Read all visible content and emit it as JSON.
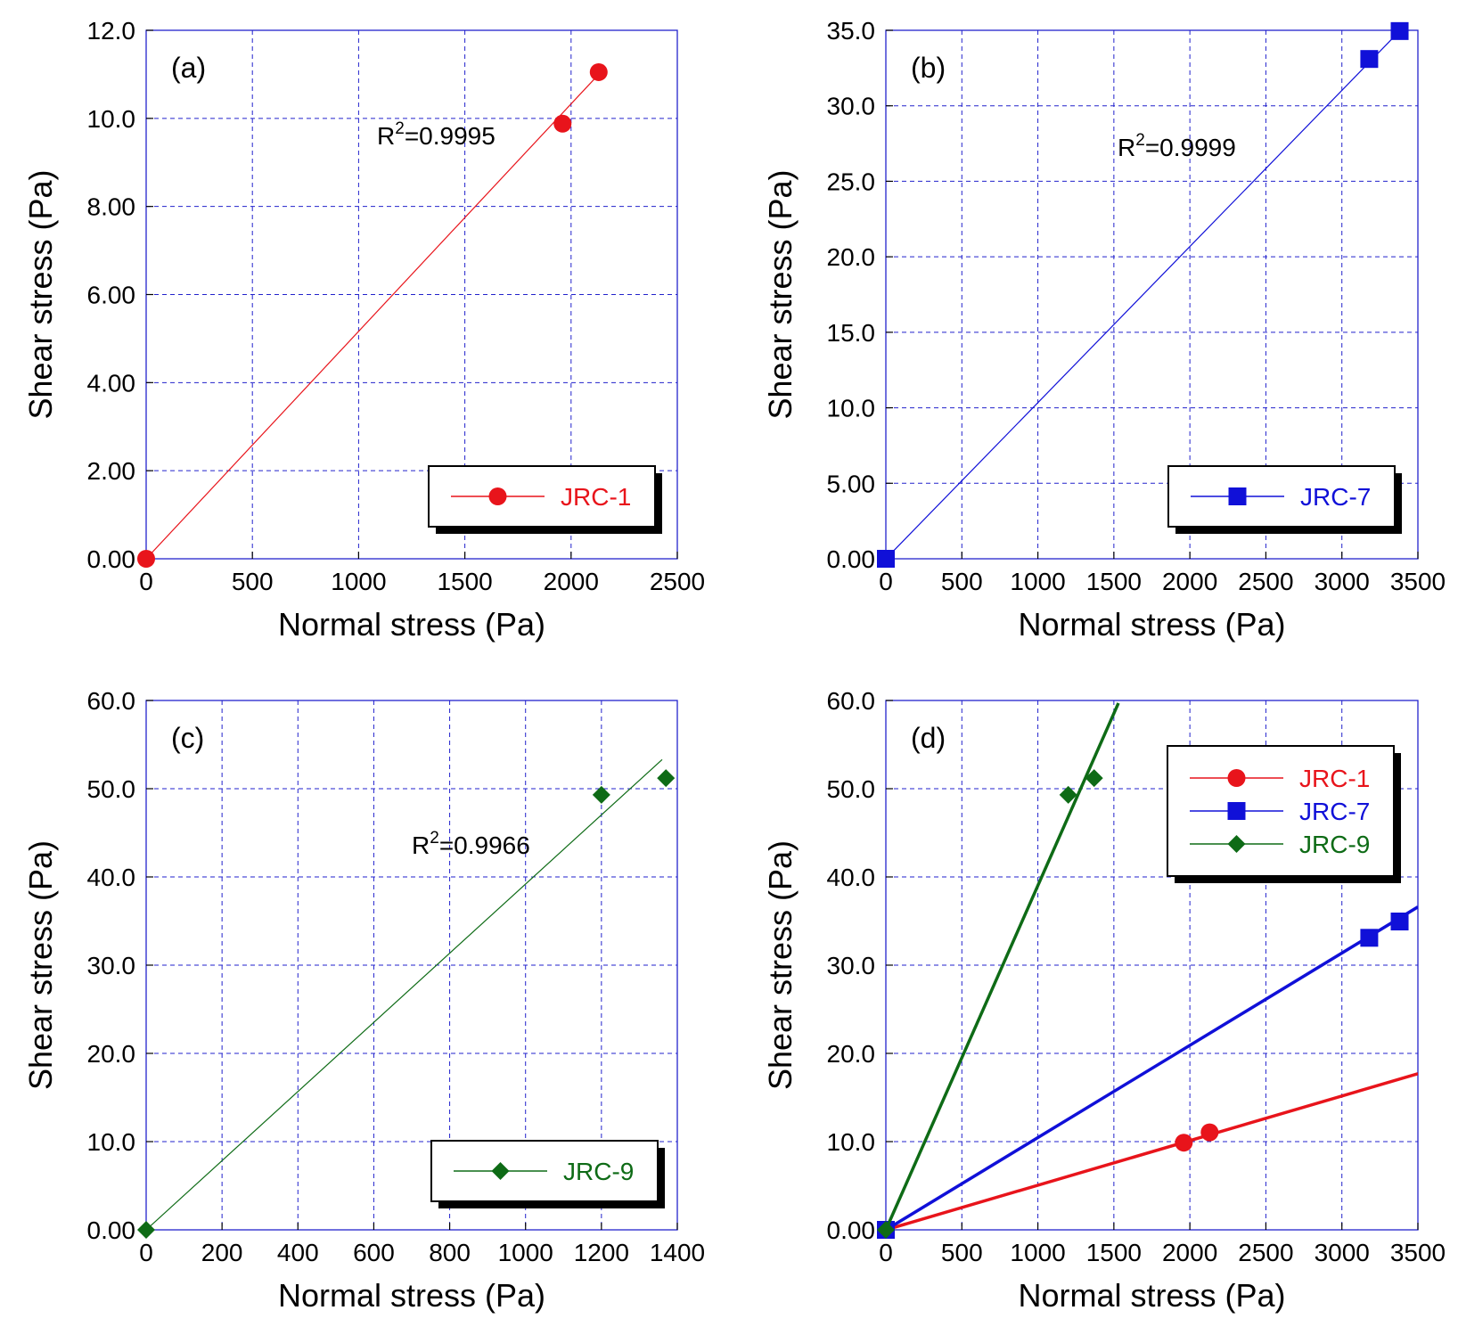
{
  "chart_data": [
    {
      "panel_label": "(a)",
      "type": "scatter",
      "xlabel": "Normal stress (Pa)",
      "ylabel": "Shear stress (Pa)",
      "xlim": [
        0,
        2500
      ],
      "ylim": [
        0,
        12
      ],
      "xticks": [
        "0",
        "500",
        "1000",
        "1500",
        "2000",
        "2500"
      ],
      "yticks": [
        "0.00",
        "2.00",
        "4.00",
        "6.00",
        "8.00",
        "10.0",
        "12.0"
      ],
      "grid": true,
      "legend_position": "bottom-right",
      "annotation": {
        "base": "R",
        "sup": "2",
        "rest": "=0.9995"
      },
      "series": [
        {
          "name": "JRC-1",
          "color": "#e8141b",
          "marker": "circle",
          "x": [
            0,
            1960,
            2130
          ],
          "y": [
            0,
            9.88,
            11.05
          ],
          "fit": {
            "x": [
              0,
              2130
            ],
            "y": [
              0,
              11.0
            ]
          }
        }
      ]
    },
    {
      "panel_label": "(b)",
      "type": "scatter",
      "xlabel": "Normal stress (Pa)",
      "ylabel": "Shear stress (Pa)",
      "xlim": [
        0,
        3500
      ],
      "ylim": [
        0,
        35
      ],
      "xticks": [
        "0",
        "500",
        "1000",
        "1500",
        "2000",
        "2500",
        "3000",
        "3500"
      ],
      "yticks": [
        "0.00",
        "5.00",
        "10.0",
        "15.0",
        "20.0",
        "25.0",
        "30.0",
        "35.0"
      ],
      "grid": true,
      "legend_position": "bottom-right",
      "annotation": {
        "base": "R",
        "sup": "2",
        "rest": "=0.9999"
      },
      "series": [
        {
          "name": "JRC-7",
          "color": "#1010d8",
          "marker": "square",
          "x": [
            0,
            3180,
            3380
          ],
          "y": [
            0,
            33.1,
            34.95
          ],
          "fit": {
            "x": [
              0,
              3380
            ],
            "y": [
              0,
              34.95
            ]
          }
        }
      ]
    },
    {
      "panel_label": "(c)",
      "type": "scatter",
      "xlabel": "Normal stress (Pa)",
      "ylabel": "Shear stress (Pa)",
      "xlim": [
        0,
        1400
      ],
      "ylim": [
        0,
        60
      ],
      "xticks": [
        "0",
        "200",
        "400",
        "600",
        "800",
        "1000",
        "1200",
        "1400"
      ],
      "yticks": [
        "0.00",
        "10.0",
        "20.0",
        "30.0",
        "40.0",
        "50.0",
        "60.0"
      ],
      "grid": true,
      "legend_position": "bottom-right",
      "annotation": {
        "base": "R",
        "sup": "2",
        "rest": "=0.9966"
      },
      "series": [
        {
          "name": "JRC-9",
          "color": "#0e6b16",
          "marker": "diamond",
          "x": [
            0,
            1200,
            1370
          ],
          "y": [
            0,
            49.3,
            51.2
          ],
          "fit": {
            "x": [
              0,
              1360
            ],
            "y": [
              0,
              53.3
            ]
          }
        }
      ]
    },
    {
      "panel_label": "(d)",
      "type": "scatter",
      "xlabel": "Normal stress (Pa)",
      "ylabel": "Shear stress (Pa)",
      "xlim": [
        0,
        3500
      ],
      "ylim": [
        0,
        60
      ],
      "xticks": [
        "0",
        "500",
        "1000",
        "1500",
        "2000",
        "2500",
        "3000",
        "3500"
      ],
      "yticks": [
        "0.00",
        "10.0",
        "20.0",
        "30.0",
        "40.0",
        "50.0",
        "60.0"
      ],
      "grid": true,
      "legend_position": "top-right",
      "annotation": null,
      "series": [
        {
          "name": "JRC-1",
          "color": "#e8141b",
          "marker": "circle",
          "x": [
            0,
            1960,
            2130
          ],
          "y": [
            0,
            9.88,
            11.05
          ],
          "fit": {
            "x": [
              0,
              3500
            ],
            "y": [
              0,
              17.7
            ]
          }
        },
        {
          "name": "JRC-7",
          "color": "#1010d8",
          "marker": "square",
          "x": [
            0,
            3180,
            3380
          ],
          "y": [
            0,
            33.1,
            34.95
          ],
          "fit": {
            "x": [
              0,
              3500
            ],
            "y": [
              0,
              36.6
            ]
          }
        },
        {
          "name": "JRC-9",
          "color": "#0e6b16",
          "marker": "diamond",
          "x": [
            0,
            1200,
            1370
          ],
          "y": [
            0,
            49.3,
            51.2
          ],
          "fit": {
            "x": [
              0,
              1530
            ],
            "y": [
              0,
              59.7
            ]
          }
        }
      ]
    }
  ]
}
